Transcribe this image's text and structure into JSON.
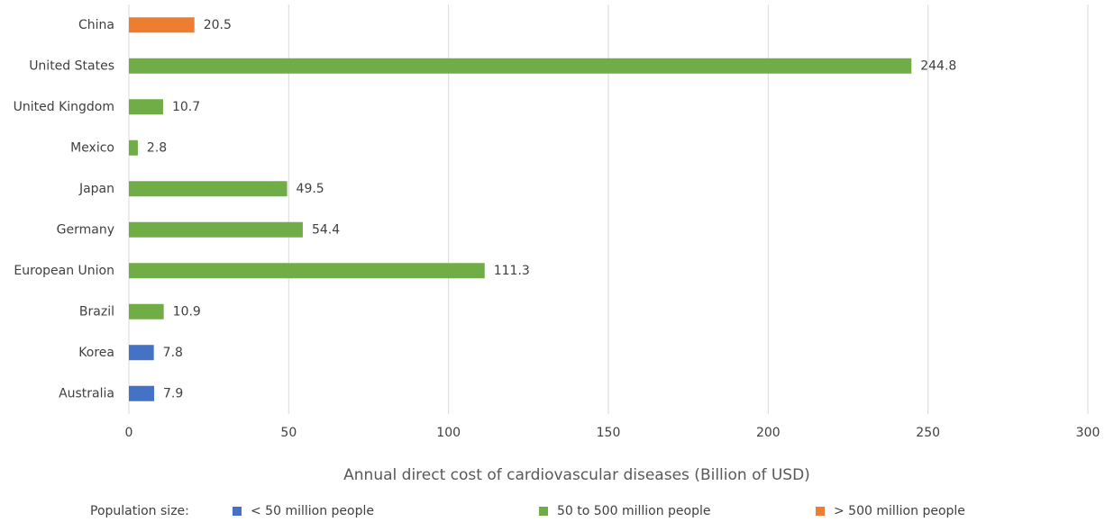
{
  "chart_data": {
    "type": "bar",
    "orientation": "horizontal",
    "x_label": "Annual direct cost of cardiovascular diseases (Billion of USD)",
    "legend_title": "Population size:",
    "categories": [
      "China",
      "United States",
      "United Kingdom",
      "Mexico",
      "Japan",
      "Germany",
      "European Union",
      "Brazil",
      "Korea",
      "Australia"
    ],
    "series": [
      {
        "name": "< 50 million people",
        "color": "#4472c4",
        "values": [
          null,
          null,
          null,
          null,
          null,
          null,
          null,
          null,
          7.8,
          7.9
        ]
      },
      {
        "name": "50 to 500 million people",
        "color": "#70ad47",
        "values": [
          null,
          244.8,
          10.7,
          2.8,
          49.5,
          54.4,
          111.3,
          10.9,
          null,
          null
        ]
      },
      {
        "name": "> 500 million people",
        "color": "#ed7d31",
        "values": [
          20.5,
          null,
          null,
          null,
          null,
          null,
          null,
          null,
          null,
          null
        ]
      }
    ],
    "xlim": [
      0,
      300
    ],
    "xticks": [
      0,
      50,
      100,
      150,
      200,
      250,
      300
    ],
    "grid": true,
    "legend": "bottom"
  }
}
